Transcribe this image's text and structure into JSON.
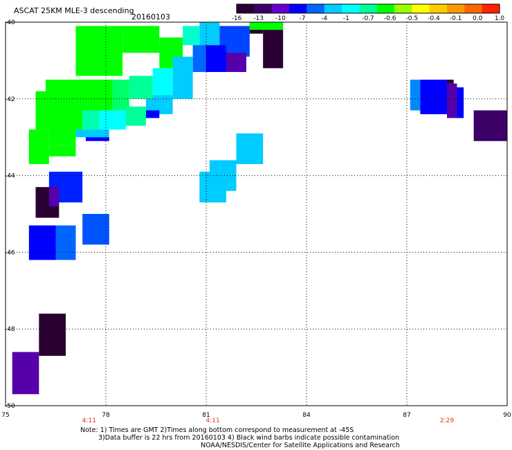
{
  "header": {
    "title": "ASCAT 25KM MLE-3 descending",
    "date": "20160103"
  },
  "colorbar": {
    "colors": [
      "#2a0033",
      "#3d0066",
      "#6600cc",
      "#0000ff",
      "#0066ff",
      "#00ccff",
      "#00ffff",
      "#00ff99",
      "#00ff00",
      "#99ff00",
      "#ffff00",
      "#ffcc00",
      "#ff9900",
      "#ff6600",
      "#ff2200"
    ],
    "labels": [
      "-16",
      "-13",
      "-10",
      "-7",
      "-4",
      "-1",
      "-0.7",
      "-0.6",
      "-0.5",
      "-0.4",
      "-0.1",
      "0.0",
      "1.0"
    ]
  },
  "footer": {
    "times": [
      {
        "lon": 77.5,
        "text": "4:11"
      },
      {
        "lon": 81.2,
        "text": "4:11"
      },
      {
        "lon": 88.2,
        "text": "2:29"
      }
    ],
    "note_line1": "Note: 1) Times are GMT 2)Times along bottom correspond to measurement at -45S",
    "note_line2": "3)Data buffer is 22 hrs from 20160103 4) Black wind barbs indicate possible contamination",
    "note_line3": "NOAA/NESDIS/Center for Satellite Applications and Research"
  },
  "chart_data": {
    "type": "heatmap",
    "xlim": [
      75,
      90
    ],
    "ylim": [
      -50,
      -40
    ],
    "x_ticks": [
      75,
      78,
      81,
      84,
      87,
      90
    ],
    "y_ticks": [
      -40,
      -42,
      -44,
      -46,
      -48,
      -50
    ],
    "x_tick_labels": [
      "75",
      "78",
      "81",
      "84",
      "87",
      "90"
    ],
    "y_tick_labels": [
      "-40",
      "-42",
      "-44",
      "-46",
      "-48",
      "-50"
    ],
    "grid": true,
    "cells": [
      {
        "lon": [
          77.1,
          78.5
        ],
        "lat": [
          -40.1,
          -41.4
        ],
        "color": "#00ff00"
      },
      {
        "lon": [
          78.5,
          79.6
        ],
        "lat": [
          -40.1,
          -40.8
        ],
        "color": "#00ff00"
      },
      {
        "lon": [
          79.6,
          80.3
        ],
        "lat": [
          -40.4,
          -41.2
        ],
        "color": "#00ff00"
      },
      {
        "lon": [
          80.3,
          80.8
        ],
        "lat": [
          -40.1,
          -40.6
        ],
        "color": "#00ffcc"
      },
      {
        "lon": [
          80.8,
          81.4
        ],
        "lat": [
          -40.0,
          -40.6
        ],
        "color": "#00ccff"
      },
      {
        "lon": [
          81.4,
          82.3
        ],
        "lat": [
          -40.1,
          -40.9
        ],
        "color": "#0044ff"
      },
      {
        "lon": [
          82.3,
          82.7
        ],
        "lat": [
          -40.0,
          -40.3
        ],
        "color": "#2a0033"
      },
      {
        "lon": [
          82.7,
          83.3
        ],
        "lat": [
          -40.2,
          -41.2
        ],
        "color": "#2a0033"
      },
      {
        "lon": [
          82.3,
          83.3
        ],
        "lat": [
          -40.0,
          -40.2
        ],
        "color": "#00ff00"
      },
      {
        "lon": [
          81.6,
          82.2
        ],
        "lat": [
          -40.8,
          -41.3
        ],
        "color": "#5500aa"
      },
      {
        "lon": [
          80.9,
          81.6
        ],
        "lat": [
          -40.6,
          -41.3
        ],
        "color": "#0000ff"
      },
      {
        "lon": [
          80.6,
          81.0
        ],
        "lat": [
          -40.6,
          -41.3
        ],
        "color": "#0066ff"
      },
      {
        "lon": [
          80.0,
          80.6
        ],
        "lat": [
          -40.9,
          -42.0
        ],
        "color": "#00ccff"
      },
      {
        "lon": [
          79.4,
          80.0
        ],
        "lat": [
          -41.2,
          -41.9
        ],
        "color": "#00ffff"
      },
      {
        "lon": [
          79.2,
          80.0
        ],
        "lat": [
          -41.9,
          -42.4
        ],
        "color": "#00ccff"
      },
      {
        "lon": [
          78.7,
          79.4
        ],
        "lat": [
          -41.4,
          -42.0
        ],
        "color": "#00ff99"
      },
      {
        "lon": [
          78.2,
          78.7
        ],
        "lat": [
          -41.5,
          -42.3
        ],
        "color": "#00ff66"
      },
      {
        "lon": [
          76.2,
          78.2
        ],
        "lat": [
          -41.5,
          -42.5
        ],
        "color": "#00ff00"
      },
      {
        "lon": [
          75.9,
          77.3
        ],
        "lat": [
          -41.8,
          -42.8
        ],
        "color": "#00ff00"
      },
      {
        "lon": [
          77.3,
          77.8
        ],
        "lat": [
          -42.3,
          -42.8
        ],
        "color": "#00ffaa"
      },
      {
        "lon": [
          77.8,
          78.6
        ],
        "lat": [
          -42.3,
          -42.8
        ],
        "color": "#00ffff"
      },
      {
        "lon": [
          78.6,
          79.2
        ],
        "lat": [
          -42.2,
          -42.7
        ],
        "color": "#00ff99"
      },
      {
        "lon": [
          79.2,
          79.6
        ],
        "lat": [
          -42.3,
          -42.5
        ],
        "color": "#0000ff"
      },
      {
        "lon": [
          76.3,
          77.1
        ],
        "lat": [
          -42.7,
          -43.2
        ],
        "color": "#00ff00"
      },
      {
        "lon": [
          77.1,
          78.1
        ],
        "lat": [
          -42.8,
          -43.0
        ],
        "color": "#00ccff"
      },
      {
        "lon": [
          77.4,
          78.1
        ],
        "lat": [
          -43.0,
          -43.1
        ],
        "color": "#0000ff"
      },
      {
        "lon": [
          75.7,
          76.3
        ],
        "lat": [
          -42.8,
          -43.7
        ],
        "color": "#00ff00"
      },
      {
        "lon": [
          76.3,
          77.1
        ],
        "lat": [
          -43.2,
          -43.5
        ],
        "color": "#00ff00"
      },
      {
        "lon": [
          76.3,
          77.3
        ],
        "lat": [
          -43.9,
          -44.7
        ],
        "color": "#0022ff"
      },
      {
        "lon": [
          75.9,
          76.6
        ],
        "lat": [
          -44.3,
          -45.1
        ],
        "color": "#2a0033"
      },
      {
        "lon": [
          76.3,
          76.6
        ],
        "lat": [
          -44.3,
          -44.8
        ],
        "color": "#5500aa"
      },
      {
        "lon": [
          77.3,
          78.1
        ],
        "lat": [
          -45.0,
          -45.8
        ],
        "color": "#0055ff"
      },
      {
        "lon": [
          75.7,
          76.5
        ],
        "lat": [
          -45.3,
          -46.2
        ],
        "color": "#0000ff"
      },
      {
        "lon": [
          76.5,
          77.1
        ],
        "lat": [
          -45.3,
          -46.2
        ],
        "color": "#0066ff"
      },
      {
        "lon": [
          80.8,
          81.6
        ],
        "lat": [
          -43.9,
          -44.7
        ],
        "color": "#00ccff"
      },
      {
        "lon": [
          81.1,
          81.9
        ],
        "lat": [
          -43.6,
          -44.4
        ],
        "color": "#00ccff"
      },
      {
        "lon": [
          81.9,
          82.7
        ],
        "lat": [
          -42.9,
          -43.7
        ],
        "color": "#00ccff"
      },
      {
        "lon": [
          87.1,
          87.4
        ],
        "lat": [
          -41.5,
          -42.3
        ],
        "color": "#0088ff"
      },
      {
        "lon": [
          87.4,
          88.2
        ],
        "lat": [
          -41.5,
          -42.4
        ],
        "color": "#0000ff"
      },
      {
        "lon": [
          88.2,
          88.4
        ],
        "lat": [
          -41.5,
          -41.6
        ],
        "color": "#2a0033"
      },
      {
        "lon": [
          88.2,
          88.5
        ],
        "lat": [
          -41.6,
          -42.5
        ],
        "color": "#5500aa"
      },
      {
        "lon": [
          88.5,
          88.7
        ],
        "lat": [
          -41.7,
          -42.5
        ],
        "color": "#0000ff"
      },
      {
        "lon": [
          89.0,
          90.0
        ],
        "lat": [
          -42.3,
          -43.1
        ],
        "color": "#3d0066"
      },
      {
        "lon": [
          76.0,
          76.8
        ],
        "lat": [
          -47.6,
          -48.7
        ],
        "color": "#2a0033"
      },
      {
        "lon": [
          75.2,
          76.0
        ],
        "lat": [
          -48.6,
          -49.7
        ],
        "color": "#5500aa"
      }
    ]
  }
}
